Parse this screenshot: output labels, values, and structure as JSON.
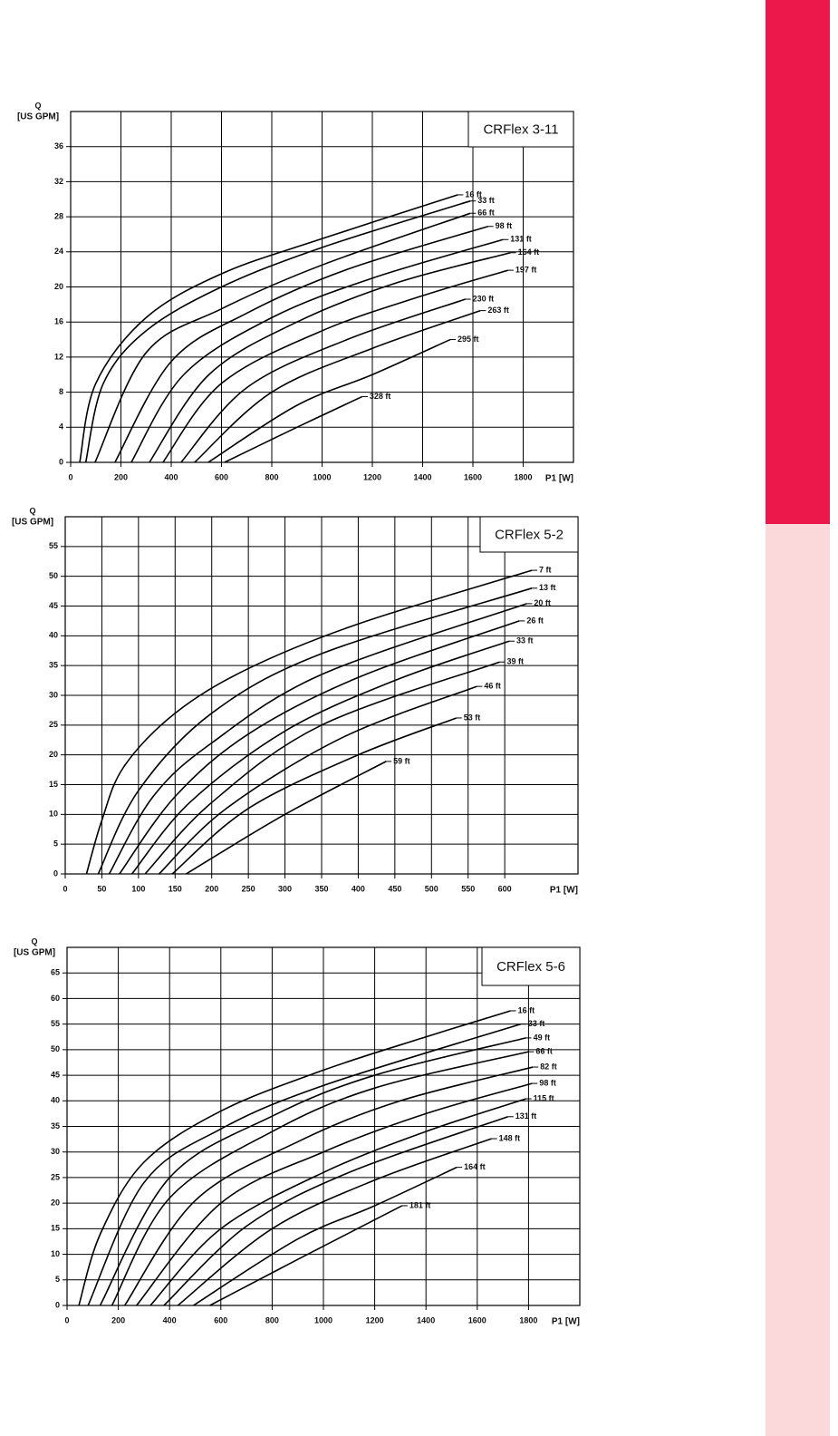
{
  "chart_data": [
    {
      "type": "line",
      "title": "CRFlex 3-11",
      "ylabel": "Q",
      "yunit": "[US GPM]",
      "xlabel": "P1 [W]",
      "xlim": [
        0,
        2000
      ],
      "xticks": [
        0,
        200,
        400,
        600,
        800,
        1000,
        1200,
        1400,
        1600,
        1800
      ],
      "ylim": [
        0,
        40
      ],
      "yticks": [
        0,
        4,
        8,
        12,
        16,
        20,
        24,
        28,
        32,
        36
      ],
      "grid": true,
      "series": [
        {
          "name": "16 ft",
          "color": "#000000",
          "x": [
            36,
            100,
            300,
            600,
            1000,
            1540
          ],
          "values": [
            0,
            9,
            16.5,
            21.5,
            25.5,
            30.5
          ]
        },
        {
          "name": "33 ft",
          "color": "#000000",
          "x": [
            60,
            130,
            300,
            600,
            1000,
            1590
          ],
          "values": [
            0,
            9,
            15,
            20,
            24.5,
            29.8
          ]
        },
        {
          "name": "66 ft",
          "color": "#000000",
          "x": [
            97,
            300,
            600,
            1000,
            1590
          ],
          "values": [
            0,
            12.5,
            17.5,
            22.5,
            28.4
          ]
        },
        {
          "name": "98 ft",
          "color": "#000000",
          "x": [
            176,
            400,
            700,
            1100,
            1660
          ],
          "values": [
            0,
            11.5,
            17,
            22,
            26.9
          ]
        },
        {
          "name": "131 ft",
          "color": "#000000",
          "x": [
            241,
            450,
            800,
            1200,
            1720
          ],
          "values": [
            0,
            10,
            16.5,
            21,
            25.4
          ]
        },
        {
          "name": "164 ft",
          "color": "#000000",
          "x": [
            313,
            550,
            900,
            1300,
            1750
          ],
          "values": [
            0,
            10,
            16,
            20.5,
            23.9
          ]
        },
        {
          "name": "197 ft",
          "color": "#000000",
          "x": [
            367,
            600,
            1000,
            1400,
            1740
          ],
          "values": [
            0,
            9,
            15,
            19,
            21.9
          ]
        },
        {
          "name": "230 ft",
          "color": "#000000",
          "x": [
            439,
            700,
            1100,
            1570
          ],
          "values": [
            0,
            8.5,
            14,
            18.6
          ]
        },
        {
          "name": "263 ft",
          "color": "#000000",
          "x": [
            493,
            800,
            1200,
            1630
          ],
          "values": [
            0,
            8,
            13,
            17.3
          ]
        },
        {
          "name": "295 ft",
          "color": "#000000",
          "x": [
            547,
            900,
            1200,
            1510
          ],
          "values": [
            0,
            6.5,
            10,
            14
          ]
        },
        {
          "name": "328 ft",
          "color": "#000000",
          "x": [
            612,
            900,
            1160
          ],
          "values": [
            0,
            4,
            7.5
          ]
        }
      ]
    },
    {
      "type": "line",
      "title": "CRFlex 5-2",
      "ylabel": "Q",
      "yunit": "[US GPM]",
      "xlabel": "P1 [W]",
      "xlim": [
        0,
        700
      ],
      "xticks": [
        0,
        50,
        100,
        150,
        200,
        250,
        300,
        350,
        400,
        450,
        500,
        550,
        600
      ],
      "ylim": [
        0,
        60
      ],
      "yticks": [
        0,
        5,
        10,
        15,
        20,
        25,
        30,
        35,
        40,
        45,
        50,
        55
      ],
      "grid": true,
      "series": [
        {
          "name": "7 ft",
          "color": "#000000",
          "x": [
            29,
            50,
            80,
            150,
            250,
            400,
            637
          ],
          "values": [
            0,
            9,
            18,
            27,
            34.5,
            42,
            51
          ]
        },
        {
          "name": "13 ft",
          "color": "#000000",
          "x": [
            45,
            100,
            200,
            350,
            637
          ],
          "values": [
            0,
            14,
            27,
            37,
            48
          ]
        },
        {
          "name": "20 ft",
          "color": "#000000",
          "x": [
            60,
            120,
            200,
            350,
            630
          ],
          "values": [
            0,
            13,
            22,
            33.5,
            45.4
          ]
        },
        {
          "name": "26 ft",
          "color": "#000000",
          "x": [
            74,
            150,
            250,
            400,
            620
          ],
          "values": [
            0,
            13,
            23.5,
            33,
            42.5
          ]
        },
        {
          "name": "33 ft",
          "color": "#000000",
          "x": [
            91,
            170,
            300,
            450,
            606
          ],
          "values": [
            0,
            12,
            24,
            32.5,
            39.1
          ]
        },
        {
          "name": "39 ft",
          "color": "#000000",
          "x": [
            109,
            200,
            350,
            593
          ],
          "values": [
            0,
            12,
            25,
            35.6
          ]
        },
        {
          "name": "46 ft",
          "color": "#000000",
          "x": [
            128,
            220,
            380,
            562
          ],
          "values": [
            0,
            11,
            23,
            31.5
          ]
        },
        {
          "name": "53 ft",
          "color": "#000000",
          "x": [
            146,
            250,
            400,
            534
          ],
          "values": [
            0,
            11,
            20,
            26.2
          ]
        },
        {
          "name": "59 ft",
          "color": "#000000",
          "x": [
            165,
            300,
            438
          ],
          "values": [
            0,
            10,
            18.9
          ]
        }
      ]
    },
    {
      "type": "line",
      "title": "CRFlex 5-6",
      "ylabel": "Q",
      "yunit": "[US GPM]",
      "xlabel": "P1 [W]",
      "xlim": [
        0,
        2000
      ],
      "xticks": [
        0,
        200,
        400,
        600,
        800,
        1000,
        1200,
        1400,
        1600,
        1800
      ],
      "ylim": [
        0,
        70
      ],
      "yticks": [
        0,
        5,
        10,
        15,
        20,
        25,
        30,
        35,
        40,
        45,
        50,
        55,
        60,
        65
      ],
      "grid": true,
      "series": [
        {
          "name": "16 ft",
          "color": "#000000",
          "x": [
            46,
            130,
            300,
            600,
            1000,
            1400,
            1730
          ],
          "values": [
            0,
            14,
            28,
            38,
            46,
            52.5,
            57.6
          ]
        },
        {
          "name": "33 ft",
          "color": "#000000",
          "x": [
            82,
            300,
            600,
            1000,
            1770
          ],
          "values": [
            0,
            24,
            34.5,
            43,
            55
          ]
        },
        {
          "name": "49 ft",
          "color": "#000000",
          "x": [
            129,
            400,
            800,
            1200,
            1790
          ],
          "values": [
            0,
            25,
            37,
            45,
            52.3
          ]
        },
        {
          "name": "66 ft",
          "color": "#000000",
          "x": [
            175,
            400,
            800,
            1200,
            1800
          ],
          "values": [
            0,
            21,
            34,
            42.5,
            49.6
          ]
        },
        {
          "name": "82 ft",
          "color": "#000000",
          "x": [
            225,
            500,
            900,
            1300,
            1817
          ],
          "values": [
            0,
            20.5,
            32,
            40,
            46.6
          ]
        },
        {
          "name": "98 ft",
          "color": "#000000",
          "x": [
            271,
            600,
            1000,
            1400,
            1814
          ],
          "values": [
            0,
            20,
            30,
            37.5,
            43.4
          ]
        },
        {
          "name": "115 ft",
          "color": "#000000",
          "x": [
            325,
            600,
            1000,
            1400,
            1790
          ],
          "values": [
            0,
            15,
            26,
            34,
            40.4
          ]
        },
        {
          "name": "131 ft",
          "color": "#000000",
          "x": [
            378,
            700,
            1100,
            1720
          ],
          "values": [
            0,
            15.5,
            26,
            36.9
          ]
        },
        {
          "name": "148 ft",
          "color": "#000000",
          "x": [
            432,
            800,
            1200,
            1656
          ],
          "values": [
            0,
            15,
            24.5,
            32.6
          ]
        },
        {
          "name": "164 ft",
          "color": "#000000",
          "x": [
            493,
            900,
            1200,
            1520
          ],
          "values": [
            0,
            13,
            19.5,
            27
          ]
        },
        {
          "name": "181 ft",
          "color": "#000000",
          "x": [
            557,
            900,
            1307
          ],
          "values": [
            0,
            9,
            19.5
          ]
        }
      ]
    }
  ]
}
